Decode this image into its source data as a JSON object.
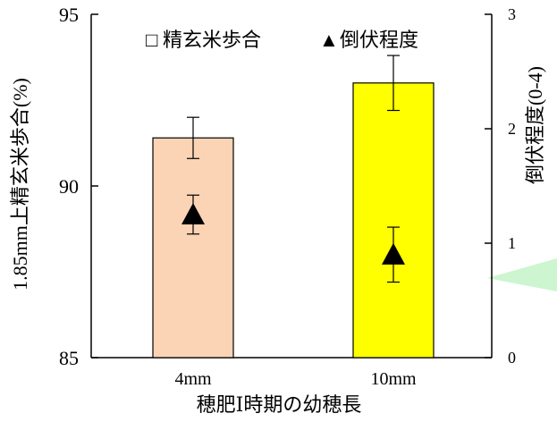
{
  "chart_data": {
    "type": "bar",
    "categories": [
      "4mm",
      "10mm"
    ],
    "xlabel": "穂肥Ⅰ時期の幼穂長",
    "ylabel": "1.85mm上精玄米歩合(%)",
    "y2label": "倒伏程度(0-4)",
    "ylim": [
      85,
      95
    ],
    "y2lim": [
      0,
      3
    ],
    "yticks": [
      "85",
      "90",
      "95"
    ],
    "y2ticks": [
      "0",
      "1",
      "2",
      "3"
    ],
    "legend": {
      "placement": "top",
      "entries": [
        {
          "marker": "□",
          "label": "精玄米歩合"
        },
        {
          "marker": "▲",
          "label": "倒伏程度"
        }
      ]
    },
    "series": [
      {
        "name": "精玄米歩合",
        "kind": "bar",
        "axis": "left",
        "values": [
          91.4,
          93.0
        ],
        "error": [
          0.6,
          0.8
        ],
        "colors": [
          "#FBD3B5",
          "#FFFF00"
        ]
      },
      {
        "name": "倒伏程度",
        "kind": "marker",
        "axis": "right",
        "values": [
          1.25,
          0.9
        ],
        "error": [
          0.17,
          0.24
        ]
      }
    ]
  },
  "decoration": {
    "callout_color": "#CCF5D0"
  }
}
